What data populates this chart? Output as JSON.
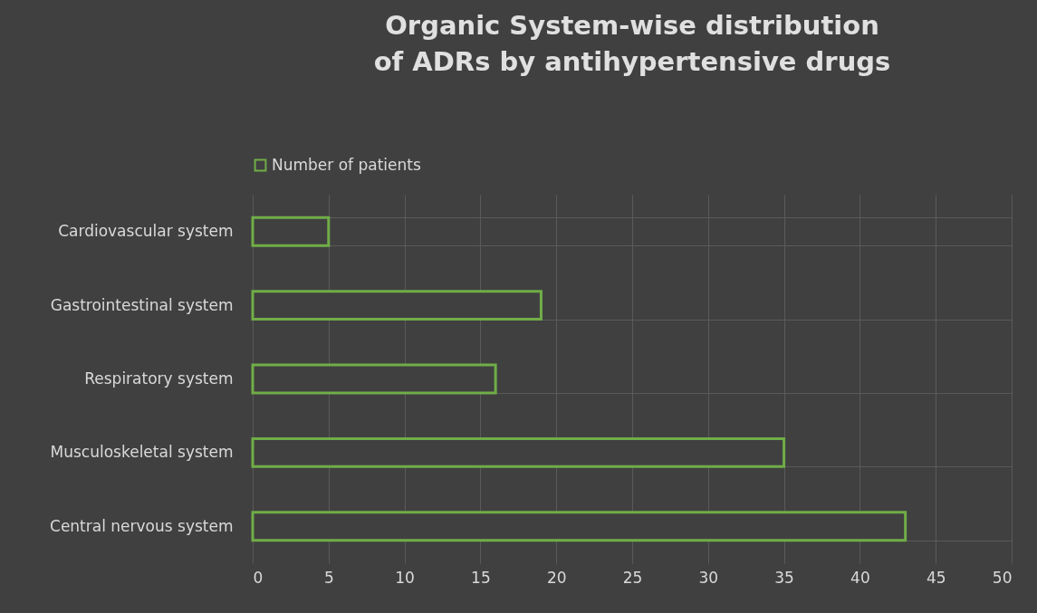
{
  "chart_data": {
    "type": "bar",
    "orientation": "horizontal",
    "title": "Organic System-wise distribution of ADRs by antihypertensive drugs",
    "categories": [
      "Cardiovascular system",
      "Gastrointestinal system",
      "Respiratory system",
      "Musculoskeletal system",
      "Central nervous system"
    ],
    "series": [
      {
        "name": "Number of patients",
        "color": "#70ad47",
        "values": [
          5,
          19,
          16,
          35,
          43
        ]
      }
    ],
    "xlim": [
      0,
      50
    ],
    "xticks": [
      0,
      5,
      10,
      15,
      20,
      25,
      30,
      35,
      40,
      45,
      50
    ],
    "grid": true,
    "legend": "top"
  }
}
